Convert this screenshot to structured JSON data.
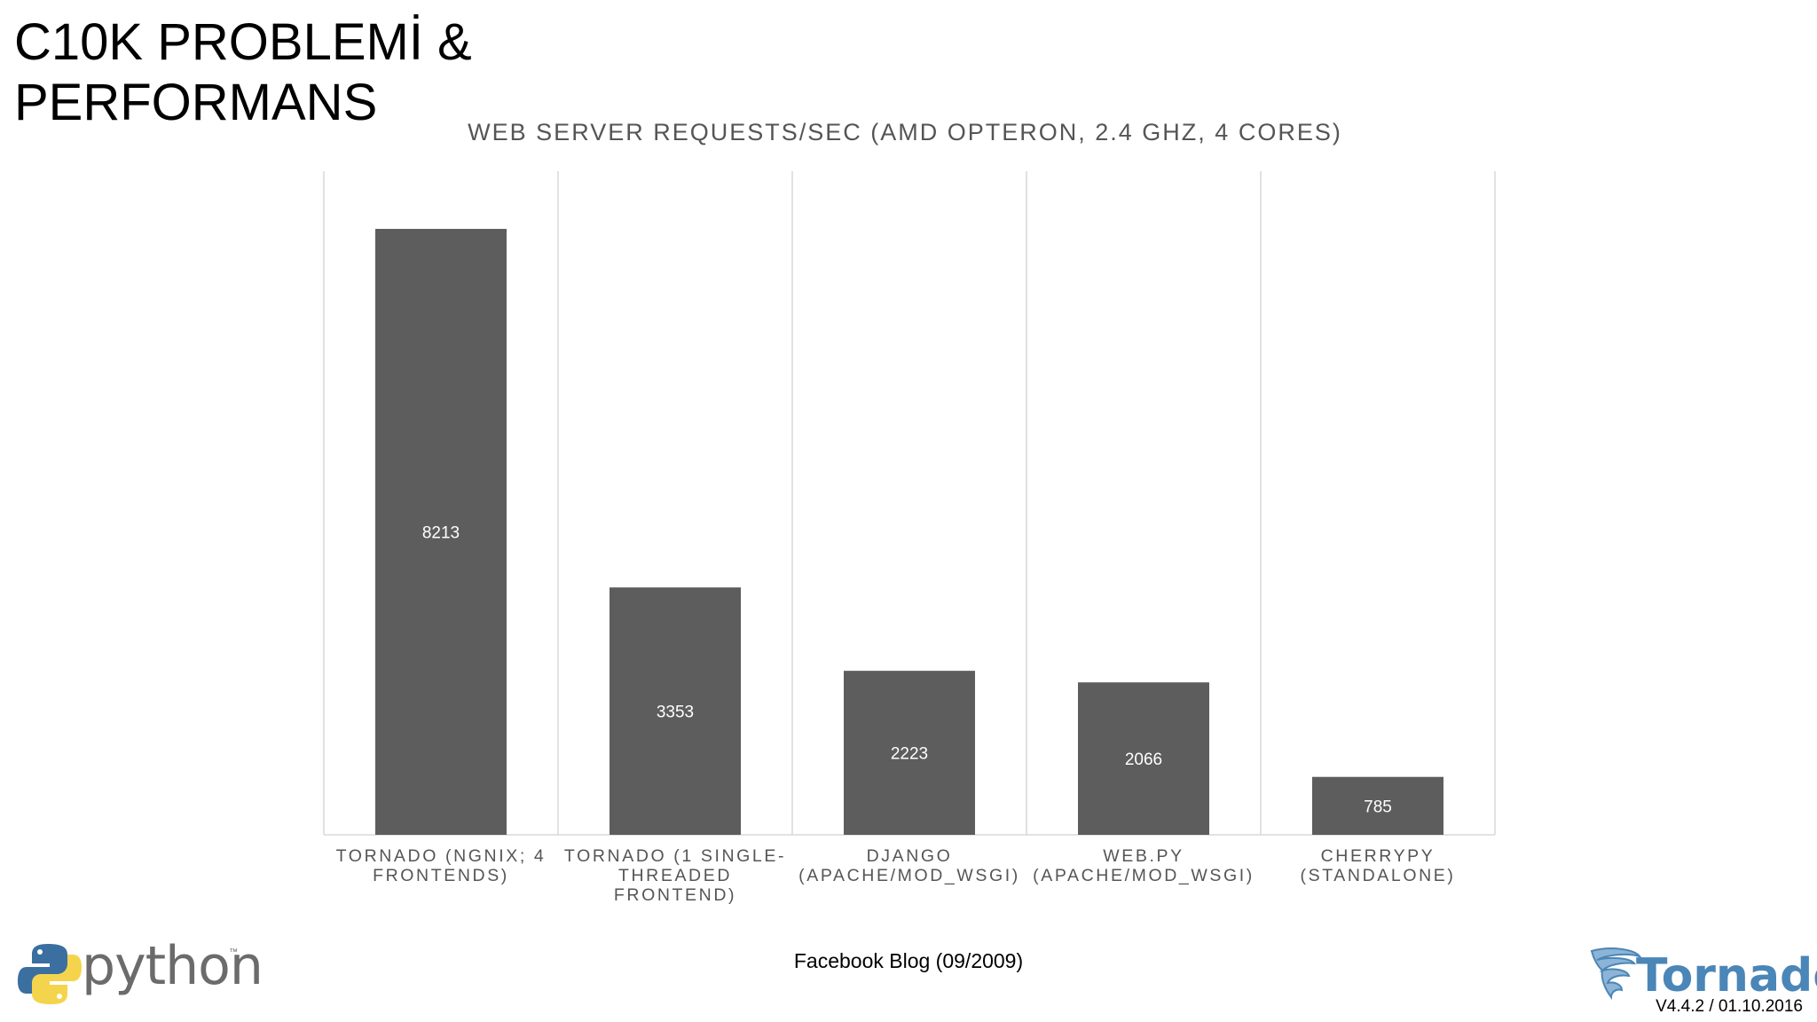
{
  "slide": {
    "title_lines": [
      "C10K PROBLEMİ &",
      "PERFORMANS"
    ],
    "source": "Facebook Blog (09/2009)",
    "version": "V4.4.2 / 01.10.2016",
    "logos": {
      "python": {
        "text": "python",
        "tm": "™",
        "icon": "python-snake-icon",
        "colors": [
          "#3a6fa0",
          "#f5d44d"
        ]
      },
      "tornado": {
        "text": "Tornado",
        "icon": "tornado-swirl-icon",
        "color": "#4a86b7"
      }
    }
  },
  "chart_data": {
    "type": "bar",
    "title": "WEB SERVER REQUESTS/SEC (AMD OPTERON, 2.4 GHZ, 4 CORES)",
    "xlabel": "",
    "ylabel": "",
    "categories": [
      [
        "TORNADO (NGNIX; 4",
        "FRONTENDS)"
      ],
      [
        "TORNADO (1 SINGLE-",
        "THREADED",
        "FRONTEND)"
      ],
      [
        "DJANGO",
        "(APACHE/MOD_WSGI)"
      ],
      [
        "WEB.PY",
        "(APACHE/MOD_WSGI)"
      ],
      [
        "CHERRYPY",
        "(STANDALONE)"
      ]
    ],
    "values": [
      8213,
      3353,
      2223,
      2066,
      785
    ],
    "data_labels": true,
    "ylim": [
      0,
      9000
    ],
    "grid": "vertical separators",
    "bar_color": "#5d5d5d",
    "grid_color": "#d9d9d9"
  }
}
